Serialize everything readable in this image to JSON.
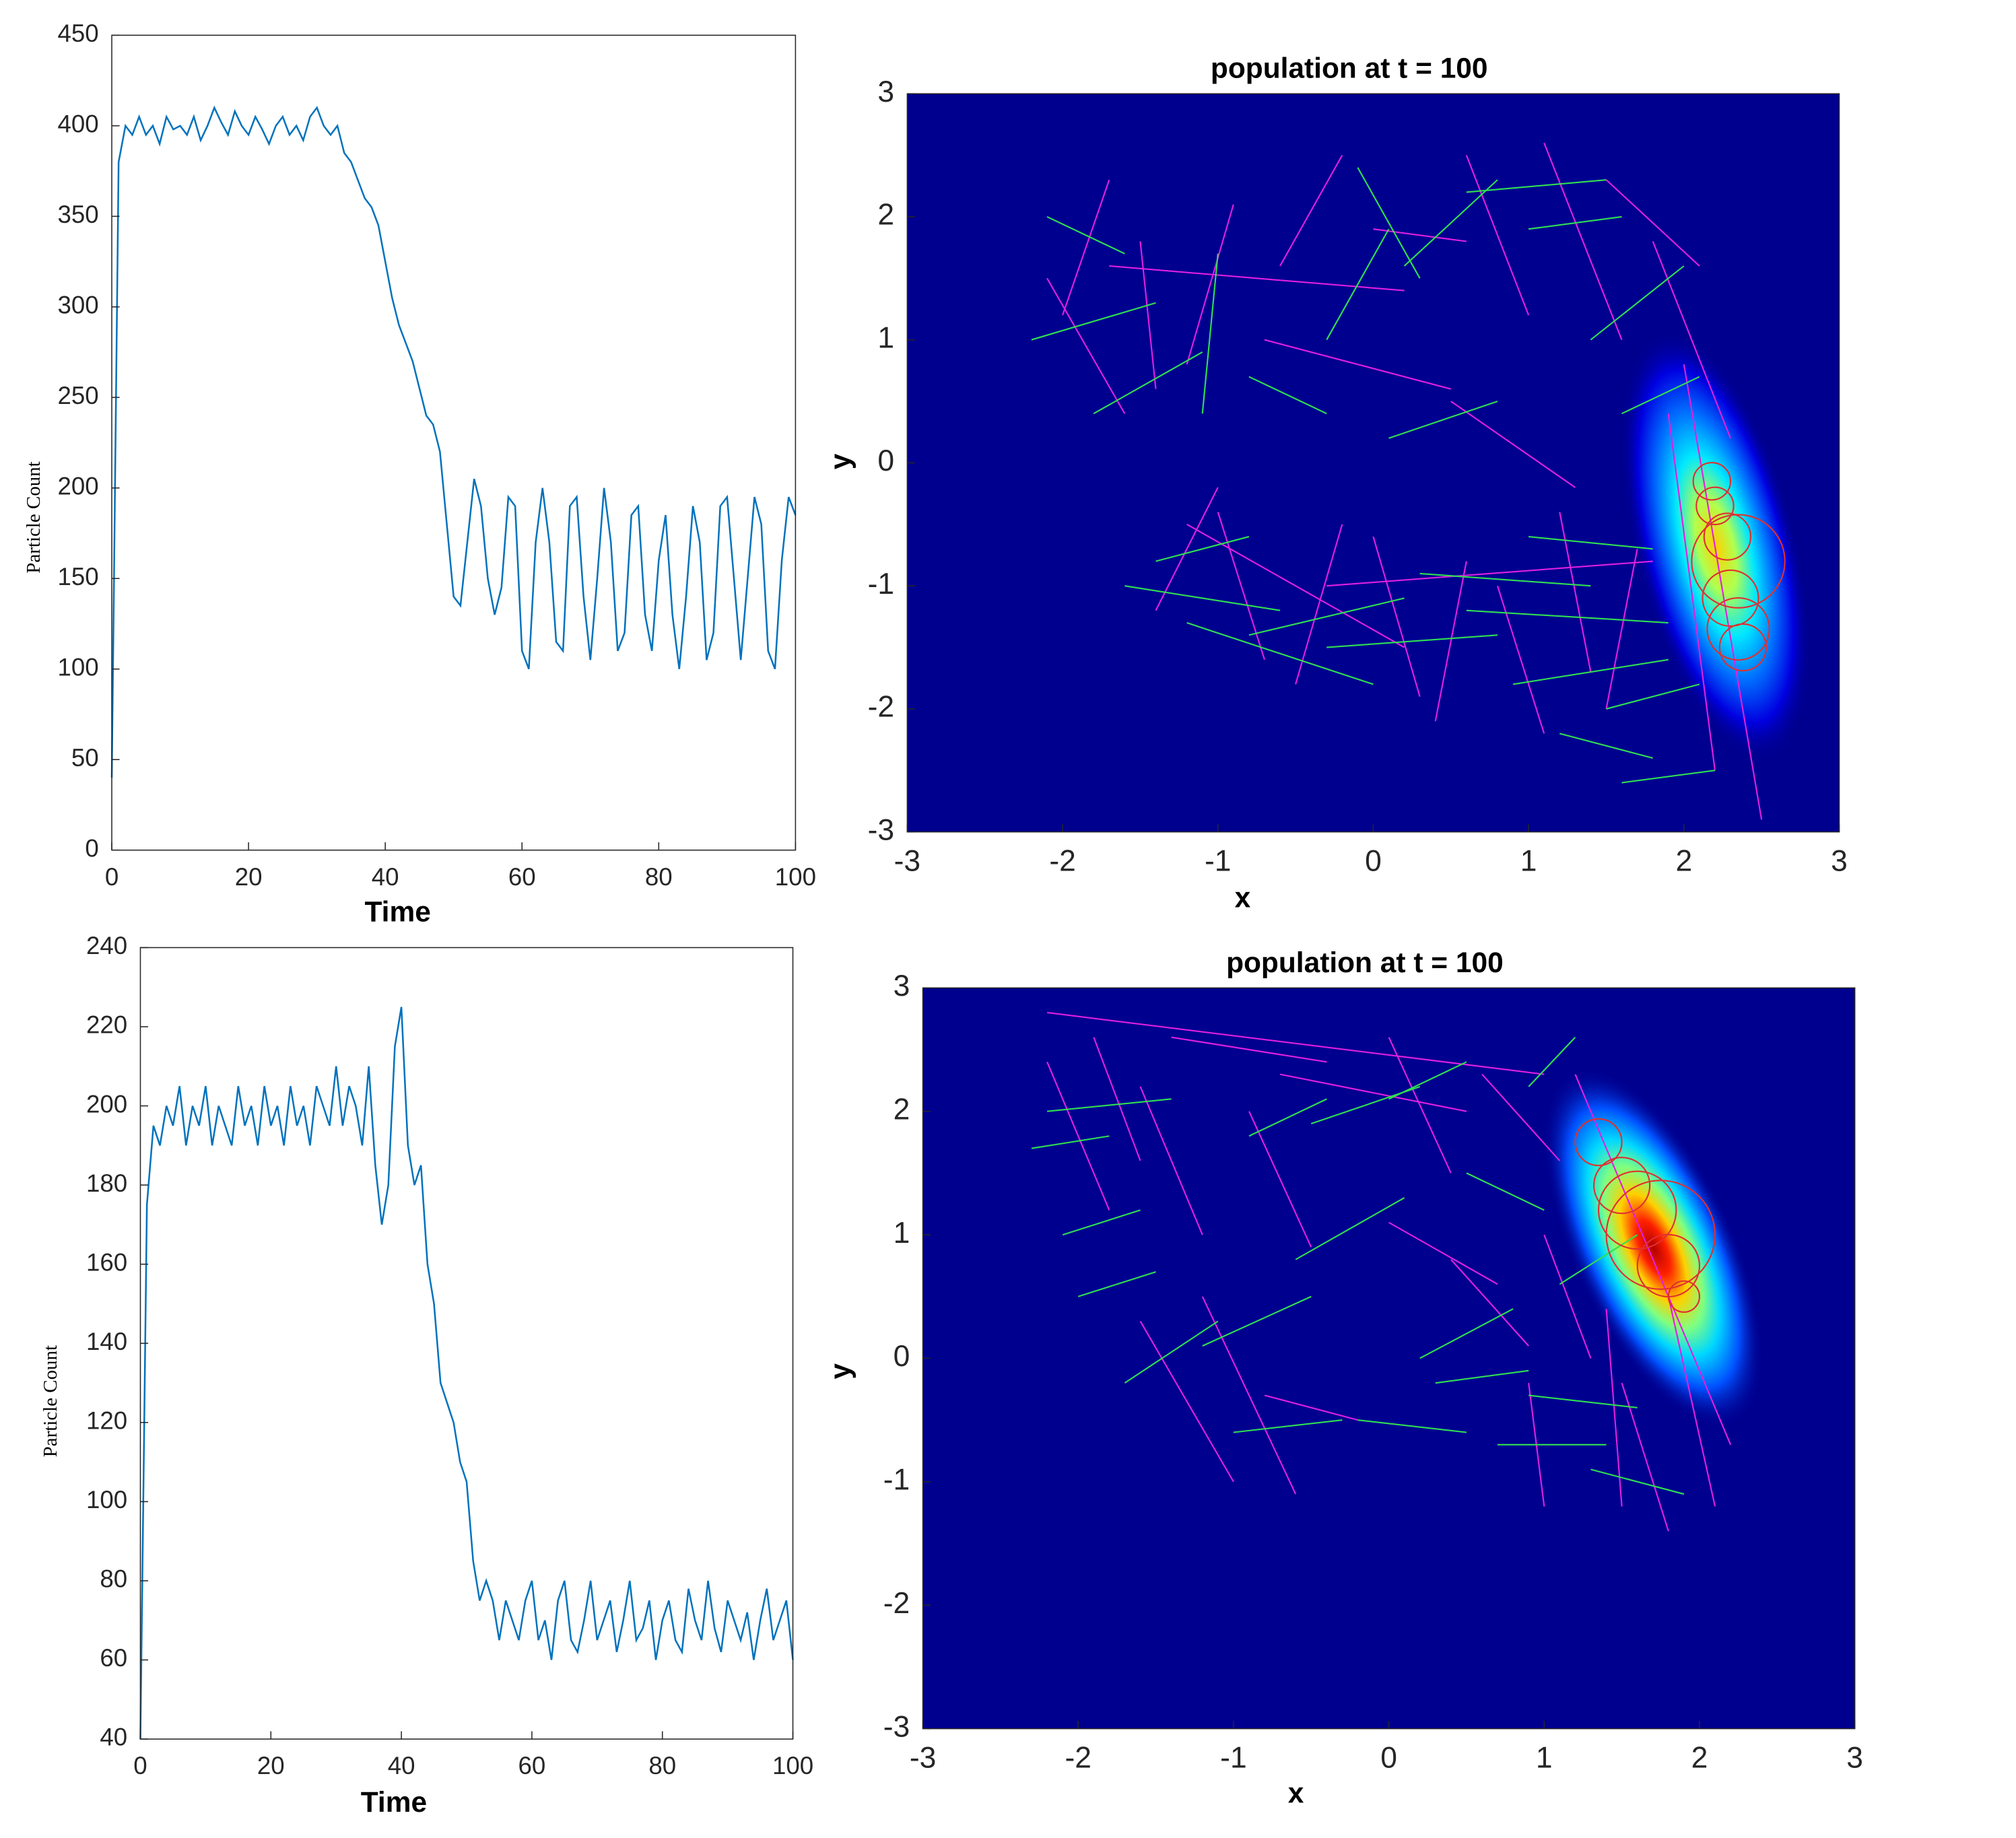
{
  "chart_data": [
    {
      "type": "line",
      "ylabel": "Particle Count",
      "xlabel": "Time",
      "xlim": [
        0,
        100
      ],
      "xticks": [
        0,
        20,
        40,
        60,
        80,
        100
      ],
      "ylim": [
        0,
        450
      ],
      "yticks": [
        0,
        50,
        100,
        150,
        200,
        250,
        300,
        350,
        400,
        450
      ],
      "x": [
        0,
        1,
        2,
        3,
        4,
        5,
        6,
        7,
        8,
        9,
        10,
        11,
        12,
        13,
        14,
        15,
        16,
        17,
        18,
        19,
        20,
        21,
        22,
        23,
        24,
        25,
        26,
        27,
        28,
        29,
        30,
        31,
        32,
        33,
        34,
        35,
        36,
        37,
        38,
        39,
        40,
        41,
        42,
        43,
        44,
        45,
        46,
        47,
        48,
        49,
        50,
        51,
        52,
        53,
        54,
        55,
        56,
        57,
        58,
        59,
        60,
        61,
        62,
        63,
        64,
        65,
        66,
        67,
        68,
        69,
        70,
        71,
        72,
        73,
        74,
        75,
        76,
        77,
        78,
        79,
        80,
        81,
        82,
        83,
        84,
        85,
        86,
        87,
        88,
        89,
        90,
        91,
        92,
        93,
        94,
        95,
        96,
        97,
        98,
        99,
        100
      ],
      "series": [
        {
          "color": "#0072bd",
          "values": [
            40,
            380,
            400,
            395,
            405,
            395,
            400,
            390,
            405,
            398,
            400,
            395,
            405,
            392,
            400,
            410,
            402,
            395,
            408,
            400,
            395,
            405,
            398,
            390,
            400,
            405,
            395,
            400,
            392,
            405,
            410,
            400,
            395,
            400,
            385,
            380,
            370,
            360,
            355,
            345,
            325,
            305,
            290,
            280,
            270,
            255,
            240,
            235,
            220,
            180,
            140,
            135,
            170,
            205,
            190,
            150,
            130,
            145,
            195,
            190,
            110,
            100,
            170,
            200,
            170,
            115,
            110,
            190,
            195,
            140,
            105,
            150,
            200,
            170,
            110,
            120,
            185,
            190,
            130,
            110,
            160,
            185,
            130,
            100,
            140,
            190,
            170,
            105,
            120,
            190,
            195,
            150,
            105,
            150,
            195,
            180,
            110,
            100,
            160,
            195,
            185
          ]
        }
      ]
    },
    {
      "type": "segments",
      "title": "population at t = 100",
      "xlabel": "x",
      "ylabel": "y",
      "xlim": [
        -3,
        3
      ],
      "xticks": [
        -3,
        -2,
        -1,
        0,
        1,
        2,
        3
      ],
      "ylim": [
        -3,
        3
      ],
      "yticks": [
        -3,
        -2,
        -1,
        0,
        1,
        2,
        3
      ],
      "series": [
        {
          "color": "#e020e0",
          "segments": [
            [
              -2.1,
              1.5,
              -1.6,
              0.4
            ],
            [
              -1.7,
              2.3,
              -2.0,
              1.2
            ],
            [
              -1.5,
              1.8,
              -1.4,
              0.6
            ],
            [
              -0.9,
              2.1,
              -1.2,
              0.8
            ],
            [
              -0.6,
              1.6,
              -0.2,
              2.5
            ],
            [
              0.0,
              1.9,
              0.6,
              1.8
            ],
            [
              0.6,
              2.5,
              1.0,
              1.2
            ],
            [
              1.1,
              2.6,
              1.6,
              1.0
            ],
            [
              1.5,
              2.3,
              2.1,
              1.6
            ],
            [
              1.8,
              1.8,
              2.3,
              0.2
            ],
            [
              2.0,
              0.8,
              2.5,
              -2.9
            ],
            [
              1.9,
              0.4,
              2.2,
              -2.5
            ],
            [
              -1.4,
              -1.2,
              -1.0,
              -0.2
            ],
            [
              -1.0,
              -0.4,
              -0.7,
              -1.6
            ],
            [
              -0.5,
              -1.8,
              -0.2,
              -0.5
            ],
            [
              0.0,
              -0.6,
              0.3,
              -1.9
            ],
            [
              0.4,
              -2.1,
              0.6,
              -0.8
            ],
            [
              0.8,
              -1.0,
              1.1,
              -2.2
            ],
            [
              1.2,
              -0.4,
              1.4,
              -1.7
            ],
            [
              1.5,
              -2.0,
              1.7,
              -0.7
            ],
            [
              -0.7,
              1.0,
              0.5,
              0.6
            ],
            [
              -1.7,
              1.6,
              0.2,
              1.4
            ],
            [
              0.5,
              0.5,
              1.3,
              -0.2
            ],
            [
              -0.3,
              -1.0,
              1.8,
              -0.8
            ],
            [
              -1.2,
              -0.5,
              0.2,
              -1.5
            ]
          ]
        },
        {
          "color": "#30e050",
          "segments": [
            [
              -2.2,
              1.0,
              -1.4,
              1.3
            ],
            [
              -2.1,
              2.0,
              -1.6,
              1.7
            ],
            [
              -1.8,
              0.4,
              -1.1,
              0.9
            ],
            [
              -1.0,
              1.7,
              -1.1,
              0.4
            ],
            [
              -0.8,
              0.7,
              -0.3,
              0.4
            ],
            [
              -0.3,
              1.0,
              0.1,
              1.9
            ],
            [
              -0.1,
              2.4,
              0.3,
              1.5
            ],
            [
              0.2,
              1.6,
              0.8,
              2.3
            ],
            [
              0.6,
              2.2,
              1.5,
              2.3
            ],
            [
              1.0,
              1.9,
              1.6,
              2.0
            ],
            [
              1.4,
              1.0,
              2.0,
              1.6
            ],
            [
              1.6,
              0.4,
              2.1,
              0.7
            ],
            [
              -1.4,
              -0.8,
              -0.8,
              -0.6
            ],
            [
              -1.6,
              -1.0,
              -0.6,
              -1.2
            ],
            [
              -0.8,
              -1.4,
              0.2,
              -1.1
            ],
            [
              -0.3,
              -1.5,
              0.8,
              -1.4
            ],
            [
              0.3,
              -0.9,
              1.4,
              -1.0
            ],
            [
              0.6,
              -1.2,
              1.9,
              -1.3
            ],
            [
              0.9,
              -1.8,
              1.9,
              -1.6
            ],
            [
              1.2,
              -2.2,
              1.8,
              -2.4
            ],
            [
              1.6,
              -2.6,
              2.2,
              -2.5
            ],
            [
              -1.2,
              -1.3,
              0.0,
              -1.8
            ],
            [
              0.1,
              0.2,
              0.8,
              0.5
            ],
            [
              1.0,
              -0.6,
              1.8,
              -0.7
            ],
            [
              1.5,
              -2.0,
              2.1,
              -1.8
            ]
          ]
        }
      ],
      "circles": {
        "color": "#e03030",
        "items": [
          [
            2.18,
            -0.15,
            0.12
          ],
          [
            2.2,
            -0.35,
            0.12
          ],
          [
            2.28,
            -0.6,
            0.15
          ],
          [
            2.35,
            -0.8,
            0.3
          ],
          [
            2.3,
            -1.1,
            0.18
          ],
          [
            2.35,
            -1.35,
            0.2
          ],
          [
            2.38,
            -1.5,
            0.15
          ]
        ]
      }
    },
    {
      "type": "line",
      "ylabel": "Particle Count",
      "xlabel": "Time",
      "xlim": [
        0,
        100
      ],
      "xticks": [
        0,
        20,
        40,
        60,
        80,
        100
      ],
      "ylim": [
        40,
        240
      ],
      "yticks": [
        40,
        60,
        80,
        100,
        120,
        140,
        160,
        180,
        200,
        220,
        240
      ],
      "x": [
        0,
        1,
        2,
        3,
        4,
        5,
        6,
        7,
        8,
        9,
        10,
        11,
        12,
        13,
        14,
        15,
        16,
        17,
        18,
        19,
        20,
        21,
        22,
        23,
        24,
        25,
        26,
        27,
        28,
        29,
        30,
        31,
        32,
        33,
        34,
        35,
        36,
        37,
        38,
        39,
        40,
        41,
        42,
        43,
        44,
        45,
        46,
        47,
        48,
        49,
        50,
        51,
        52,
        53,
        54,
        55,
        56,
        57,
        58,
        59,
        60,
        61,
        62,
        63,
        64,
        65,
        66,
        67,
        68,
        69,
        70,
        71,
        72,
        73,
        74,
        75,
        76,
        77,
        78,
        79,
        80,
        81,
        82,
        83,
        84,
        85,
        86,
        87,
        88,
        89,
        90,
        91,
        92,
        93,
        94,
        95,
        96,
        97,
        98,
        99,
        100
      ],
      "series": [
        {
          "color": "#0072bd",
          "values": [
            40,
            175,
            195,
            190,
            200,
            195,
            205,
            190,
            200,
            195,
            205,
            190,
            200,
            195,
            190,
            205,
            195,
            200,
            190,
            205,
            195,
            200,
            190,
            205,
            195,
            200,
            190,
            205,
            200,
            195,
            210,
            195,
            205,
            200,
            190,
            210,
            185,
            170,
            180,
            215,
            225,
            190,
            180,
            185,
            160,
            150,
            130,
            125,
            120,
            110,
            105,
            85,
            75,
            80,
            75,
            65,
            75,
            70,
            65,
            75,
            80,
            65,
            70,
            60,
            75,
            80,
            65,
            62,
            70,
            80,
            65,
            70,
            75,
            62,
            70,
            80,
            65,
            68,
            75,
            60,
            70,
            75,
            65,
            62,
            78,
            70,
            65,
            80,
            68,
            62,
            75,
            70,
            65,
            72,
            60,
            70,
            78,
            65,
            70,
            75,
            60
          ]
        }
      ]
    },
    {
      "type": "segments",
      "title": "population at t = 100",
      "xlabel": "x",
      "ylabel": "y",
      "xlim": [
        -3,
        3
      ],
      "xticks": [
        -3,
        -2,
        -1,
        0,
        1,
        2,
        3
      ],
      "ylim": [
        -3,
        3
      ],
      "yticks": [
        -3,
        -2,
        -1,
        0,
        1,
        2,
        3
      ],
      "series": [
        {
          "color": "#e020e0",
          "segments": [
            [
              -2.2,
              2.4,
              -1.8,
              1.2
            ],
            [
              -1.9,
              2.6,
              -1.6,
              1.6
            ],
            [
              -1.6,
              2.2,
              -1.2,
              1.0
            ],
            [
              -1.6,
              0.3,
              -1.0,
              -1.0
            ],
            [
              -1.2,
              0.5,
              -0.6,
              -1.1
            ],
            [
              -0.9,
              2.0,
              -0.5,
              0.9
            ],
            [
              -1.4,
              2.6,
              -0.4,
              2.4
            ],
            [
              -0.7,
              2.3,
              0.5,
              2.0
            ],
            [
              0.0,
              2.6,
              0.4,
              1.5
            ],
            [
              0.0,
              1.1,
              0.7,
              0.6
            ],
            [
              0.4,
              0.8,
              0.9,
              0.1
            ],
            [
              0.6,
              2.3,
              1.1,
              1.6
            ],
            [
              1.0,
              1.0,
              1.3,
              0.0
            ],
            [
              0.9,
              -0.2,
              1.0,
              -1.2
            ],
            [
              1.4,
              0.4,
              1.5,
              -1.2
            ],
            [
              1.5,
              -0.2,
              1.8,
              -1.4
            ],
            [
              1.8,
              0.5,
              2.1,
              -1.2
            ],
            [
              1.2,
              2.3,
              2.2,
              -0.7
            ],
            [
              -0.8,
              -0.3,
              -0.2,
              -0.5
            ],
            [
              -2.2,
              2.8,
              1.0,
              2.3
            ]
          ]
        },
        {
          "color": "#30e050",
          "segments": [
            [
              -2.2,
              2.0,
              -1.4,
              2.1
            ],
            [
              -2.3,
              1.7,
              -1.8,
              1.8
            ],
            [
              -2.1,
              1.0,
              -1.6,
              1.2
            ],
            [
              -2.0,
              0.5,
              -1.5,
              0.7
            ],
            [
              -1.7,
              -0.2,
              -1.1,
              0.3
            ],
            [
              -1.2,
              0.1,
              -0.5,
              0.5
            ],
            [
              -1.0,
              -0.6,
              -0.3,
              -0.5
            ],
            [
              -0.9,
              1.8,
              -0.4,
              2.1
            ],
            [
              -0.6,
              0.8,
              0.1,
              1.3
            ],
            [
              -0.5,
              1.9,
              0.2,
              2.2
            ],
            [
              -0.2,
              -0.5,
              0.5,
              -0.6
            ],
            [
              0.0,
              2.1,
              0.5,
              2.4
            ],
            [
              0.2,
              0.0,
              0.8,
              0.4
            ],
            [
              0.5,
              1.5,
              1.0,
              1.2
            ],
            [
              0.7,
              -0.7,
              1.4,
              -0.7
            ],
            [
              0.9,
              -0.3,
              1.6,
              -0.4
            ],
            [
              1.1,
              0.6,
              1.6,
              1.0
            ],
            [
              1.3,
              -0.9,
              1.9,
              -1.1
            ],
            [
              0.9,
              2.2,
              1.2,
              2.6
            ],
            [
              0.3,
              -0.2,
              0.9,
              -0.1
            ]
          ]
        }
      ],
      "circles": {
        "color": "#e03030",
        "items": [
          [
            1.35,
            1.75,
            0.15
          ],
          [
            1.5,
            1.4,
            0.18
          ],
          [
            1.6,
            1.2,
            0.25
          ],
          [
            1.75,
            1.0,
            0.35
          ],
          [
            1.8,
            0.75,
            0.2
          ],
          [
            1.9,
            0.5,
            0.1
          ]
        ]
      }
    }
  ]
}
